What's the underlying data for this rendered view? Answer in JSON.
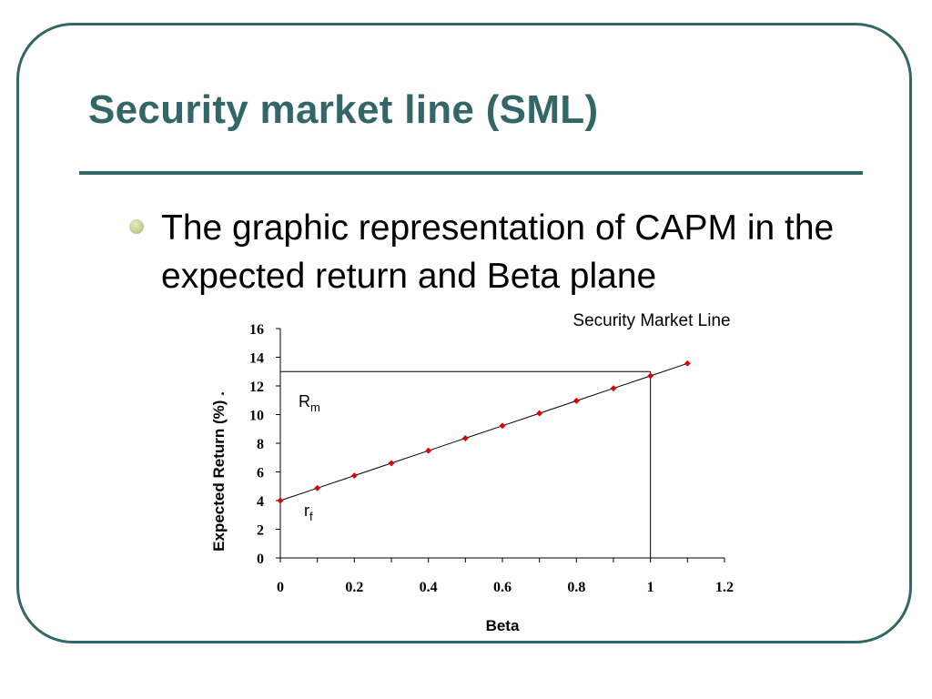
{
  "slide": {
    "title": "Security market line (SML)",
    "bullet": "The graphic representation of CAPM in the expected return and Beta plane",
    "colors": {
      "accent": "#336666",
      "bullet": "#c9d08f",
      "marker": "#e00000"
    }
  },
  "chart_data": {
    "type": "line",
    "title": "Security Market Line",
    "xlabel": "Beta",
    "ylabel": "Expected Return (%) .",
    "xlim": [
      0,
      1.2
    ],
    "ylim": [
      0,
      16
    ],
    "x_ticks": [
      "0",
      "0.2",
      "0.4",
      "0.6",
      "0.8",
      "1",
      "1.2"
    ],
    "y_ticks": [
      "0",
      "2",
      "4",
      "6",
      "8",
      "10",
      "12",
      "14",
      "16"
    ],
    "x": [
      0,
      0.1,
      0.2,
      0.3,
      0.4,
      0.5,
      0.6,
      0.7,
      0.8,
      0.9,
      1.0,
      1.1
    ],
    "y": [
      4.0,
      4.87,
      5.74,
      6.61,
      7.48,
      8.35,
      9.22,
      10.09,
      10.96,
      11.83,
      12.7,
      13.57
    ],
    "reference_lines": {
      "y": 13,
      "x": 1
    },
    "annotations": [
      {
        "main": "R",
        "sub": "m"
      },
      {
        "main": "r",
        "sub": "f"
      }
    ],
    "grid": false,
    "legend": "none"
  }
}
